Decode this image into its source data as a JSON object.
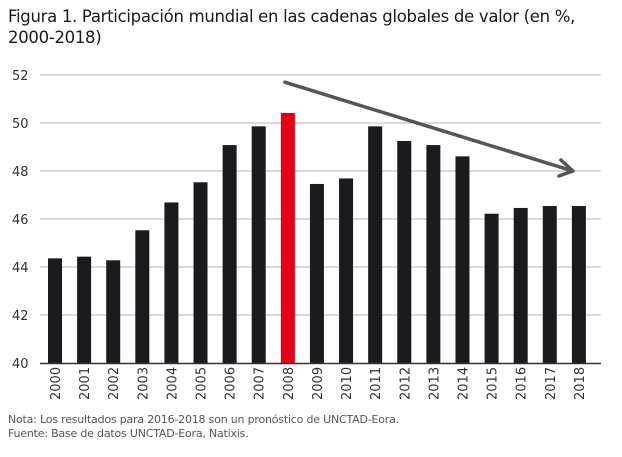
{
  "chart_data": {
    "type": "bar",
    "title": "Figura 1. Participación mundial en las cadenas globales de valor (en %, 2000-2018)",
    "xlabel": "",
    "ylabel": "",
    "ylim": [
      40,
      52
    ],
    "yticks": [
      "40",
      "42",
      "44",
      "46",
      "48",
      "50",
      "52"
    ],
    "grid": true,
    "categories": [
      "2000",
      "2001",
      "2002",
      "2003",
      "2004",
      "2005",
      "2006",
      "2007",
      "2008",
      "2009",
      "2010",
      "2011",
      "2012",
      "2013",
      "2014",
      "2015",
      "2016",
      "2017",
      "2018"
    ],
    "values": [
      44.36,
      44.43,
      44.28,
      45.53,
      46.69,
      47.53,
      49.08,
      49.86,
      50.42,
      47.46,
      47.69,
      49.86,
      49.25,
      49.08,
      48.61,
      46.22,
      46.46,
      46.54,
      46.54
    ],
    "highlight_category": "2008",
    "colors": {
      "bar": "#1c1a1e",
      "highlight": "#e2001a",
      "grid": "#b5b5b5",
      "arrow": "#555555"
    },
    "annotation": {
      "type": "trend-arrow",
      "from": {
        "x": "2008",
        "y": 51.7
      },
      "to": {
        "x": "2018",
        "y": 48
      }
    }
  },
  "notes": {
    "nota": "Nota: Los resultados para 2016-2018 son un pronóstico de UNCTAD-Eora.",
    "fuente": "Fuente: Base de datos UNCTAD-Eora, Natixis."
  }
}
